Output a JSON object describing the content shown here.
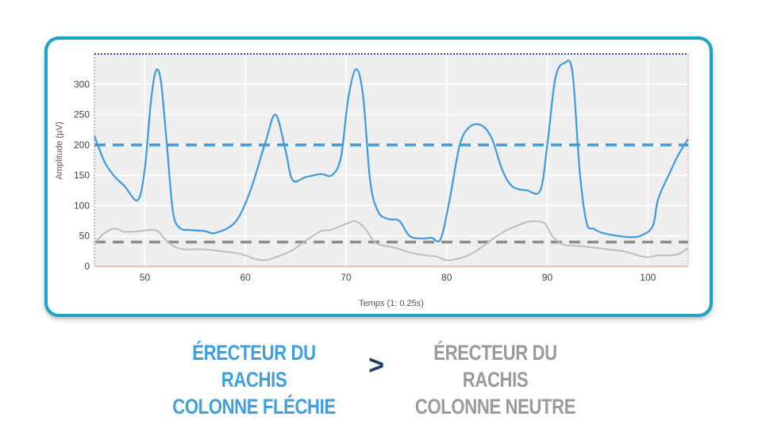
{
  "chart_data": {
    "type": "line",
    "xlabel": "Temps (1: 0.25s)",
    "ylabel": "Amplitude (µV)",
    "xlim": [
      45,
      104
    ],
    "ylim": [
      0,
      350
    ],
    "xticks": [
      50,
      60,
      70,
      80,
      90,
      100
    ],
    "yticks": [
      0,
      50,
      100,
      150,
      200,
      250,
      300
    ],
    "grid": true,
    "series": [
      {
        "color": "#3b9ae0",
        "x": [
          45,
          46,
          47,
          48,
          49.3,
          50,
          50.6,
          51.1,
          51.6,
          52.2,
          52.8,
          53.5,
          54.5,
          56,
          57,
          59,
          60.5,
          62,
          63,
          64,
          64.7,
          66,
          67.5,
          68.6,
          69.5,
          70.2,
          71,
          71.7,
          72.4,
          73.2,
          74.2,
          75.3,
          76.3,
          77.5,
          78.5,
          79.4,
          80.3,
          81.3,
          82.3,
          83.5,
          84.5,
          85.5,
          86.5,
          88,
          89.3,
          90,
          90.8,
          91.7,
          92.5,
          93.2,
          93.9,
          94.6,
          95.5,
          97,
          98.5,
          99.5,
          100.5,
          101,
          102,
          103,
          104
        ],
        "values": [
          215,
          172,
          148,
          132,
          109,
          160,
          270,
          322,
          305,
          200,
          90,
          63,
          60,
          58,
          55,
          73,
          125,
          205,
          250,
          190,
          142,
          147,
          152,
          150,
          180,
          275,
          325,
          280,
          140,
          90,
          78,
          75,
          50,
          46,
          47,
          45,
          110,
          200,
          230,
          232,
          210,
          160,
          132,
          125,
          125,
          200,
          310,
          335,
          320,
          160,
          72,
          62,
          55,
          50,
          48,
          52,
          67,
          110,
          148,
          183,
          210
        ]
      },
      {
        "color": "#bdbdbd",
        "x": [
          45,
          46,
          47,
          48,
          49.5,
          50.5,
          51.3,
          52,
          53,
          54,
          56,
          58,
          59,
          60,
          61,
          62,
          63,
          64.5,
          66,
          67.5,
          68.5,
          70,
          71,
          72,
          73,
          75,
          76.5,
          78,
          79,
          80,
          81,
          82,
          83,
          84,
          85,
          86,
          87,
          88,
          89,
          89.8,
          90.5,
          91.5,
          92.5,
          93.5,
          95,
          96,
          97.5,
          99,
          100,
          101,
          102,
          103,
          104
        ],
        "values": [
          38,
          55,
          62,
          57,
          58,
          60,
          58,
          45,
          32,
          28,
          28,
          24,
          22,
          18,
          12,
          10,
          15,
          25,
          42,
          58,
          60,
          70,
          74,
          60,
          38,
          30,
          22,
          18,
          16,
          10,
          12,
          17,
          26,
          38,
          50,
          60,
          67,
          73,
          74,
          70,
          50,
          36,
          34,
          33,
          30,
          28,
          25,
          18,
          15,
          18,
          18,
          20,
          30
        ]
      }
    ],
    "reference_lines": [
      {
        "y": 200,
        "color": "#3b9ae0",
        "style": "dashed"
      },
      {
        "y": 40,
        "color": "#8c8c8c",
        "style": "dashed"
      },
      {
        "y": 350,
        "color": "#2e4fa8",
        "style": "dotted"
      }
    ]
  },
  "caption": {
    "left_line1": "ÉRECTEUR DU RACHIS",
    "left_line2": "COLONNE FLÉCHIE",
    "symbol": ">",
    "right_line1": "ÉRECTEUR DU RACHIS",
    "right_line2": "COLONNE NEUTRE"
  }
}
